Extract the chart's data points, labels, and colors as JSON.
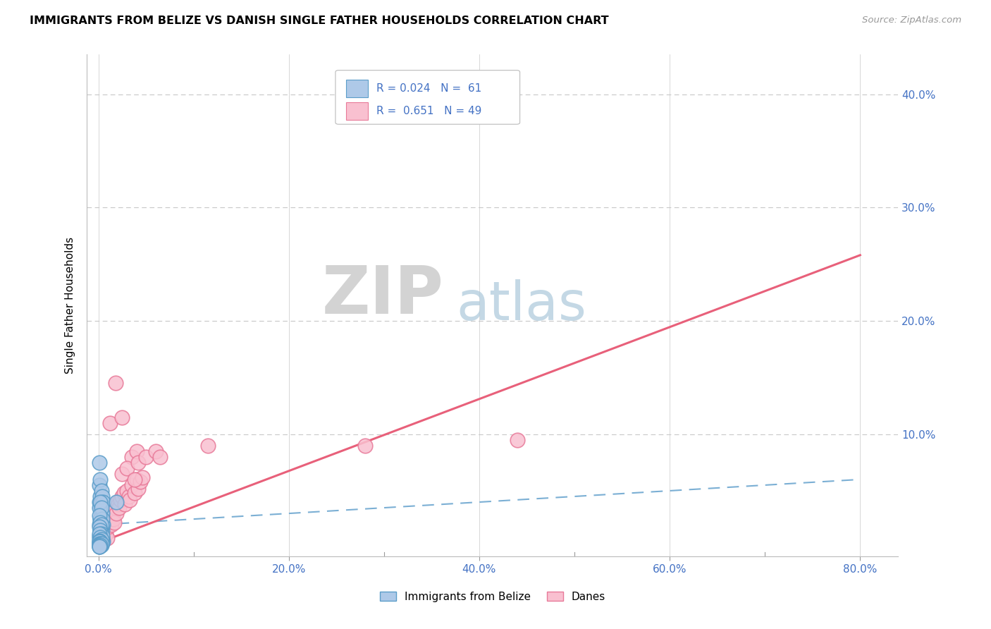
{
  "title": "IMMIGRANTS FROM BELIZE VS DANISH SINGLE FATHER HOUSEHOLDS CORRELATION CHART",
  "source": "Source: ZipAtlas.com",
  "ylabel": "Single Father Households",
  "x_tick_labels": [
    "0.0%",
    "20.0%",
    "40.0%",
    "60.0%",
    "80.0%"
  ],
  "x_tick_values": [
    0.0,
    0.2,
    0.4,
    0.6,
    0.8
  ],
  "y_tick_labels": [
    "10.0%",
    "20.0%",
    "30.0%",
    "40.0%"
  ],
  "y_tick_values": [
    0.1,
    0.2,
    0.3,
    0.4
  ],
  "xlim": [
    -0.012,
    0.84
  ],
  "ylim": [
    -0.008,
    0.435
  ],
  "legend_label_blue": "Immigrants from Belize",
  "legend_label_pink": "Danes",
  "legend_r_blue": "R = 0.024",
  "legend_n_blue": "N =  61",
  "legend_r_pink": "R =  0.651",
  "legend_n_pink": "N = 49",
  "color_blue_fill": "#aec9e8",
  "color_blue_edge": "#5b9dc9",
  "color_pink_fill": "#f9c0d0",
  "color_pink_edge": "#e87a99",
  "color_blue_line": "#7bafd4",
  "color_pink_line": "#e8607a",
  "color_legend_text": "#4472c4",
  "color_axis_tick": "#4472c4",
  "watermark_zip": "ZIP",
  "watermark_atlas": "atlas",
  "blue_scatter_x": [
    0.001,
    0.001,
    0.001,
    0.001,
    0.002,
    0.002,
    0.002,
    0.002,
    0.002,
    0.002,
    0.003,
    0.003,
    0.003,
    0.003,
    0.003,
    0.003,
    0.003,
    0.004,
    0.004,
    0.004,
    0.004,
    0.005,
    0.005,
    0.005,
    0.001,
    0.001,
    0.002,
    0.002,
    0.002,
    0.003,
    0.003,
    0.003,
    0.004,
    0.004,
    0.001,
    0.001,
    0.002,
    0.002,
    0.003,
    0.003,
    0.001,
    0.001,
    0.002,
    0.002,
    0.003,
    0.004,
    0.001,
    0.002,
    0.003,
    0.001,
    0.002,
    0.001,
    0.001,
    0.002,
    0.003,
    0.001,
    0.002,
    0.001,
    0.019,
    0.001,
    0.001
  ],
  "blue_scatter_y": [
    0.075,
    0.055,
    0.04,
    0.02,
    0.06,
    0.045,
    0.035,
    0.025,
    0.015,
    0.005,
    0.05,
    0.04,
    0.03,
    0.02,
    0.01,
    0.005,
    0.002,
    0.045,
    0.03,
    0.015,
    0.005,
    0.04,
    0.02,
    0.005,
    0.035,
    0.01,
    0.04,
    0.025,
    0.01,
    0.035,
    0.018,
    0.005,
    0.025,
    0.008,
    0.028,
    0.008,
    0.022,
    0.006,
    0.02,
    0.005,
    0.018,
    0.004,
    0.015,
    0.004,
    0.012,
    0.01,
    0.012,
    0.009,
    0.007,
    0.006,
    0.005,
    0.005,
    0.003,
    0.003,
    0.003,
    0.002,
    0.002,
    0.001,
    0.04,
    0.001,
    0.001
  ],
  "pink_scatter_x": [
    0.002,
    0.003,
    0.004,
    0.005,
    0.006,
    0.007,
    0.008,
    0.009,
    0.01,
    0.011,
    0.012,
    0.013,
    0.014,
    0.015,
    0.016,
    0.017,
    0.018,
    0.019,
    0.02,
    0.021,
    0.022,
    0.023,
    0.025,
    0.027,
    0.028,
    0.03,
    0.032,
    0.033,
    0.035,
    0.038,
    0.04,
    0.042,
    0.044,
    0.046,
    0.012,
    0.018,
    0.025,
    0.035,
    0.04,
    0.025,
    0.03,
    0.038,
    0.042,
    0.05,
    0.06,
    0.065,
    0.115,
    0.28,
    0.44
  ],
  "pink_scatter_y": [
    0.005,
    0.01,
    0.005,
    0.02,
    0.01,
    0.015,
    0.012,
    0.008,
    0.018,
    0.022,
    0.025,
    0.028,
    0.02,
    0.03,
    0.025,
    0.022,
    0.035,
    0.03,
    0.04,
    0.038,
    0.035,
    0.042,
    0.045,
    0.048,
    0.038,
    0.05,
    0.045,
    0.042,
    0.055,
    0.048,
    0.06,
    0.052,
    0.058,
    0.062,
    0.11,
    0.145,
    0.115,
    0.08,
    0.085,
    0.065,
    0.07,
    0.06,
    0.075,
    0.08,
    0.085,
    0.08,
    0.09,
    0.09,
    0.095
  ],
  "blue_trend_x": [
    0.0,
    0.8
  ],
  "blue_trend_y": [
    0.02,
    0.06
  ],
  "pink_trend_x": [
    0.0,
    0.8
  ],
  "pink_trend_y": [
    0.004,
    0.258
  ]
}
